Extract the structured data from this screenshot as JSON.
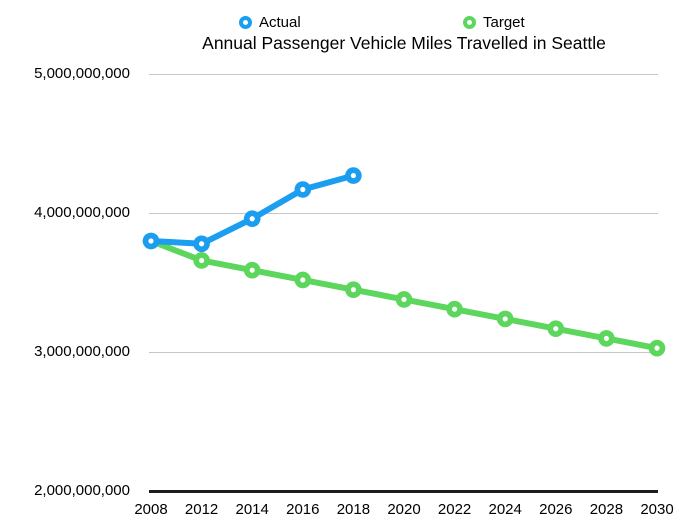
{
  "chart_data": {
    "type": "line",
    "title": "Annual Passenger Vehicle Miles Travelled in Seattle",
    "categories": [
      "2008",
      "2012",
      "2014",
      "2016",
      "2018",
      "2020",
      "2022",
      "2024",
      "2026",
      "2028",
      "2030"
    ],
    "series": [
      {
        "name": "Actual",
        "color": "#1B9DF0",
        "values": [
          3800000000,
          3780000000,
          3960000000,
          4170000000,
          4270000000,
          null,
          null,
          null,
          null,
          null,
          null
        ]
      },
      {
        "name": "Target",
        "color": "#5CD65C",
        "values": [
          3800000000,
          3660000000,
          3590000000,
          3520000000,
          3450000000,
          3380000000,
          3310000000,
          3240000000,
          3170000000,
          3100000000,
          3030000000
        ]
      }
    ],
    "y_ticks": [
      5000000000,
      4000000000,
      3000000000,
      2000000000
    ],
    "y_tick_labels": [
      "5,000,000,000",
      "4,000,000,000",
      "3,000,000,000",
      "2,000,000,000"
    ],
    "ylim": [
      2000000000,
      5000000000
    ],
    "grid": "horizontal",
    "legend_position": "top-center"
  },
  "colors": {
    "actual_series": "#1B9DF0",
    "target_series": "#5CD65C",
    "gridline": "#C6C6C6",
    "axis_line": "#1C1C1C",
    "text": "#000000",
    "background": "#FFFFFF"
  }
}
